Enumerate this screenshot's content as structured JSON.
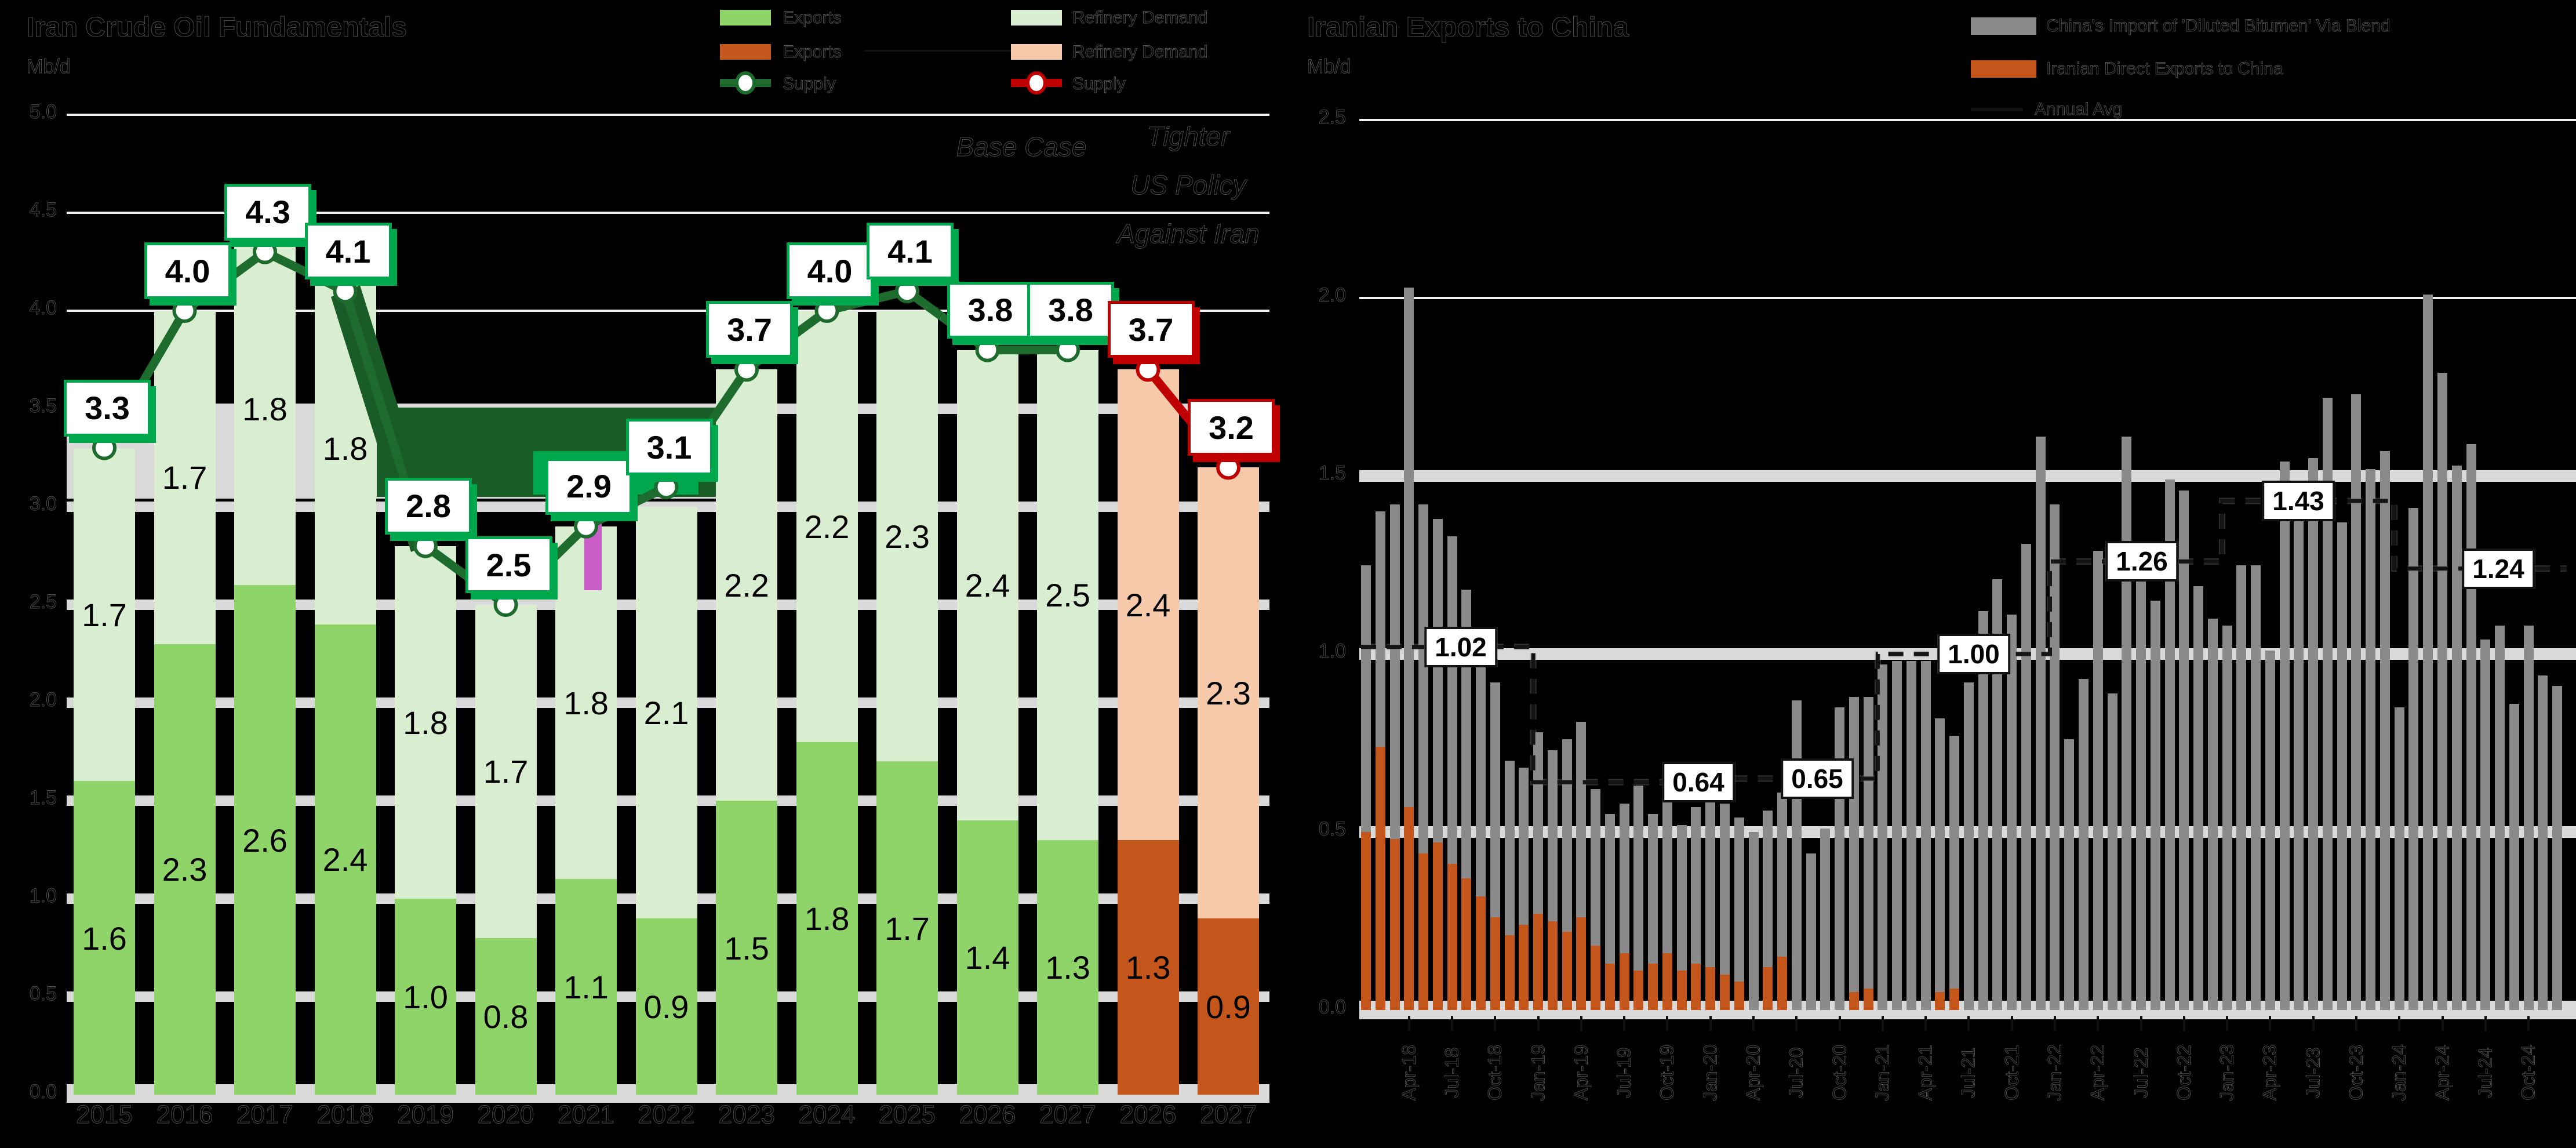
{
  "left_panel": {
    "title": "Iran Crude Oil Fundamentals",
    "unit_label": "Mb/d",
    "legend": [
      {
        "label": "Exports",
        "color": "#8ed468",
        "type": "swatch"
      },
      {
        "label": "Refinery Demand",
        "color": "#d9edd0",
        "type": "swatch"
      },
      {
        "label": "Exports",
        "color": "#c4561c",
        "type": "swatch"
      },
      {
        "label": "Refinery Demand",
        "color": "#f6c9ab",
        "type": "swatch"
      },
      {
        "label": "Supply",
        "color": "#1e6b2e",
        "type": "line-marker"
      },
      {
        "label": "Supply",
        "color": "#c00000",
        "type": "line-marker"
      }
    ],
    "annotation_base_case": "Base Case",
    "annotation_scenario_line1": "Tighter",
    "annotation_scenario_line2": "US Policy",
    "annotation_scenario_line3": "Against Iran"
  },
  "right_panel": {
    "title": "Iranian Exports to China",
    "unit_label": "Mb/d",
    "legend": [
      {
        "label": "China's Import of 'Diluted Bitumen' Via Blend",
        "color": "#8a8a8a",
        "type": "swatch"
      },
      {
        "label": "Iranian Direct Exports to China",
        "color": "#c4561c",
        "type": "swatch"
      },
      {
        "label": "Annual Avg",
        "color": "#111111",
        "type": "dash"
      }
    ]
  },
  "chart_data": [
    {
      "type": "bar",
      "subtype": "stacked-bars-with-line",
      "title": "Iran Crude Oil Fundamentals",
      "ylabel": "Mb/d",
      "ylim": [
        0,
        5
      ],
      "yticks": [
        "5.0",
        "4.5",
        "4.0",
        "3.5",
        "3.0",
        "2.5",
        "2.0",
        "1.5",
        "1.0",
        "0.5",
        "0.0"
      ],
      "categories": [
        "2015",
        "2016",
        "2017",
        "2018",
        "2019",
        "2020",
        "2021",
        "2022",
        "2023",
        "2024",
        "2025",
        "2026",
        "2027",
        "2026",
        "2027"
      ],
      "scenario_start_index": 13,
      "series": [
        {
          "name": "Exports",
          "values": [
            1.6,
            2.3,
            2.6,
            2.4,
            1.0,
            0.8,
            1.1,
            0.9,
            1.5,
            1.8,
            1.7,
            1.4,
            1.3,
            1.3,
            0.9
          ],
          "labels": [
            "1.6",
            "2.3",
            "2.6",
            "2.4",
            "1.0",
            "0.8",
            "1.1",
            "0.9",
            "1.5",
            "1.8",
            "1.7",
            "1.4",
            "1.3",
            "1.3",
            "0.9"
          ]
        },
        {
          "name": "Refinery Demand",
          "values": [
            1.7,
            1.7,
            1.8,
            1.8,
            1.8,
            1.7,
            1.8,
            2.1,
            2.2,
            2.2,
            2.3,
            2.4,
            2.5,
            2.4,
            2.3
          ],
          "labels": [
            "1.7",
            "1.7",
            "1.8",
            "1.8",
            "1.8",
            "1.7",
            "1.8",
            "2.1",
            "2.2",
            "2.2",
            "2.3",
            "2.4",
            "2.5",
            "2.4",
            "2.3"
          ]
        },
        {
          "name": "Supply",
          "values": [
            3.3,
            4.0,
            4.3,
            4.1,
            2.8,
            2.5,
            2.9,
            3.1,
            3.7,
            4.0,
            4.1,
            3.8,
            3.8,
            3.7,
            3.2
          ],
          "labels": [
            "3.3",
            "4.0",
            "4.3",
            "4.1",
            "2.8",
            "2.5",
            "2.9",
            "3.1",
            "3.7",
            "4.0",
            "4.1",
            "3.8",
            "3.8",
            "3.7",
            "3.2"
          ]
        }
      ],
      "legend_position": "top"
    },
    {
      "type": "bar",
      "subtype": "monthly-bars-with-annual-avg-step",
      "title": "Iranian Exports to China",
      "ylabel": "Mb/d",
      "ylim": [
        0,
        2.5
      ],
      "yticks": [
        "2.5",
        "2.0",
        "1.5",
        "1.0",
        "0.5",
        "0.0"
      ],
      "x_start": "Jan-18",
      "x_end": "Dec-24",
      "x_tick_labels": [
        "Apr-18",
        "Jul-18",
        "Oct-18",
        "Jan-19",
        "Apr-19",
        "Jul-19",
        "Oct-19",
        "Jan-20",
        "Apr-20",
        "Jul-20",
        "Oct-20",
        "Jan-21",
        "Apr-21",
        "Jul-21",
        "Oct-21",
        "Jan-22",
        "Apr-22",
        "Jul-22",
        "Oct-22",
        "Jan-23",
        "Apr-23",
        "Jul-23",
        "Oct-23",
        "Jan-24",
        "Apr-24",
        "Jul-24",
        "Oct-24"
      ],
      "x_tick_first_index": 3,
      "x_tick_step": 3,
      "series": [
        {
          "name": "China's Import of 'Diluted Bitumen' Via Blend",
          "values": [
            1.25,
            1.4,
            1.42,
            2.03,
            1.42,
            1.38,
            1.33,
            1.18,
            1.0,
            0.92,
            0.7,
            0.68,
            0.78,
            0.73,
            0.76,
            0.81,
            0.62,
            0.55,
            0.58,
            0.63,
            0.55,
            0.6,
            0.52,
            0.57,
            0.62,
            0.58,
            0.54,
            0.5,
            0.56,
            0.61,
            0.87,
            0.44,
            0.51,
            0.85,
            0.88,
            0.88,
            0.97,
            0.98,
            0.98,
            0.98,
            0.82,
            0.77,
            0.92,
            1.12,
            1.21,
            1.11,
            1.31,
            1.61,
            1.42,
            0.76,
            0.93,
            1.29,
            0.89,
            1.61,
            1.21,
            1.15,
            1.49,
            1.46,
            1.19,
            1.1,
            1.08,
            1.25,
            1.25,
            1.01,
            1.54,
            1.48,
            1.55,
            1.72,
            1.37,
            1.73,
            1.52,
            1.57,
            0.85,
            1.41,
            2.01,
            1.79,
            1.53,
            1.59,
            1.04,
            1.08,
            0.86,
            1.08,
            0.94,
            0.91
          ]
        },
        {
          "name": "Iranian Direct Exports to China",
          "values": [
            0.5,
            0.74,
            0.48,
            0.57,
            0.44,
            0.47,
            0.41,
            0.37,
            0.32,
            0.26,
            0.21,
            0.24,
            0.27,
            0.25,
            0.22,
            0.26,
            0.18,
            0.13,
            0.16,
            0.11,
            0.13,
            0.16,
            0.11,
            0.13,
            0.12,
            0.1,
            0.08,
            0,
            0.12,
            0.15,
            0,
            0,
            0,
            0,
            0.05,
            0.06,
            0,
            0,
            0,
            0,
            0.05,
            0.06,
            0,
            0,
            0,
            0,
            0,
            0,
            0,
            0,
            0,
            0,
            0,
            0,
            0,
            0,
            0,
            0,
            0,
            0,
            0,
            0,
            0,
            0,
            0,
            0,
            0,
            0,
            0,
            0,
            0,
            0,
            0,
            0,
            0,
            0,
            0,
            0,
            0,
            0,
            0,
            0,
            0,
            0
          ]
        }
      ],
      "annual_avg": [
        {
          "year": "2018",
          "value": 1.02,
          "label": "1.02",
          "label_x": 2520
        },
        {
          "year": "2019",
          "value": 0.64,
          "label": "0.64",
          "label_x": 2930
        },
        {
          "year": "2020",
          "value": 0.65,
          "label": "0.65",
          "label_x": 3135
        },
        {
          "year": "2021",
          "value": 1.0,
          "label": "1.00",
          "label_x": 3405
        },
        {
          "year": "2022",
          "value": 1.26,
          "label": "1.26",
          "label_x": 3695
        },
        {
          "year": "2023",
          "value": 1.43,
          "label": "1.43",
          "label_x": 3965
        },
        {
          "year": "2024",
          "value": 1.24,
          "label": "1.24",
          "label_x": 4310
        }
      ],
      "legend_position": "top-right"
    }
  ],
  "colors": {
    "background": "#000000",
    "exports_green": "#8ed468",
    "refinery_light_green": "#d9edd0",
    "exports_scenario_orange": "#c4561c",
    "refinery_scenario_salmon": "#f6c9ab",
    "supply_line_green": "#1e6b2e",
    "supply_line_red": "#c00000",
    "label_box_green": "#00a84d",
    "gray_bar": "#8a8a8a",
    "grid_gray": "#d9d9d9",
    "grid_white": "#f2f2f2",
    "dark_band_green": "#1a5c28",
    "magenta_artifact": "#c95fc6"
  }
}
